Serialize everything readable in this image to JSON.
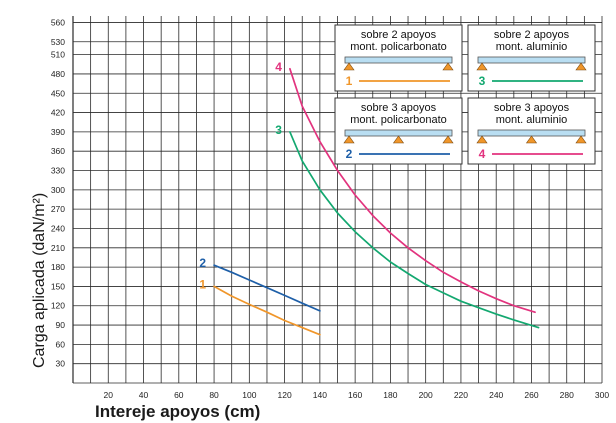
{
  "chart_data": {
    "type": "line",
    "xlabel": "Intereje apoyos (cm)",
    "ylabel": "Carga aplicada (daN/m²)",
    "xlim": [
      0,
      300
    ],
    "ylim": [
      0,
      570
    ],
    "x_ticks": [
      20,
      40,
      60,
      80,
      100,
      120,
      140,
      160,
      180,
      200,
      220,
      240,
      260,
      280,
      300
    ],
    "y_ticks": [
      30,
      60,
      90,
      120,
      150,
      180,
      210,
      240,
      270,
      300,
      330,
      360,
      390,
      420,
      450,
      480,
      510,
      530,
      560
    ],
    "grid": true,
    "series": [
      {
        "name": "1",
        "color": "#f0962a",
        "x": [
          80,
          90,
          100,
          110,
          120,
          130,
          140
        ],
        "y": [
          150,
          135,
          122,
          110,
          97,
          86,
          75
        ]
      },
      {
        "name": "2",
        "color": "#1e5fa8",
        "x": [
          80,
          90,
          100,
          110,
          120,
          130,
          140
        ],
        "y": [
          183,
          172,
          160,
          148,
          136,
          124,
          112
        ]
      },
      {
        "name": "3",
        "color": "#13a870",
        "x": [
          123,
          130,
          140,
          150,
          160,
          170,
          180,
          190,
          200,
          210,
          220,
          230,
          240,
          250,
          264
        ],
        "y": [
          390,
          345,
          300,
          264,
          235,
          210,
          188,
          170,
          153,
          140,
          127,
          117,
          107,
          98,
          86
        ]
      },
      {
        "name": "4",
        "color": "#e2337e",
        "x": [
          123,
          130,
          140,
          150,
          160,
          170,
          180,
          190,
          200,
          210,
          220,
          230,
          240,
          250,
          262
        ],
        "y": [
          488,
          430,
          375,
          330,
          292,
          260,
          233,
          210,
          190,
          172,
          157,
          143,
          131,
          120,
          110
        ]
      }
    ],
    "legend": {
      "placement": "top-right",
      "boxes": [
        {
          "line1": "sobre 2 apoyos",
          "line2": "mont. policarbonato",
          "supports": 2,
          "series": "1"
        },
        {
          "line1": "sobre 2 apoyos",
          "line2": "mont. aluminio",
          "supports": 2,
          "series": "3"
        },
        {
          "line1": "sobre 3 apoyos",
          "line2": "mont. policarbonato",
          "supports": 3,
          "series": "2"
        },
        {
          "line1": "sobre 3 apoyos",
          "line2": "mont. aluminio",
          "supports": 3,
          "series": "4"
        }
      ]
    }
  },
  "colors": {
    "grid": "#2a2a2a",
    "beam_fill": "#b9def2",
    "support_fill": "#f0962a",
    "legend_bg": "#ffffff"
  }
}
